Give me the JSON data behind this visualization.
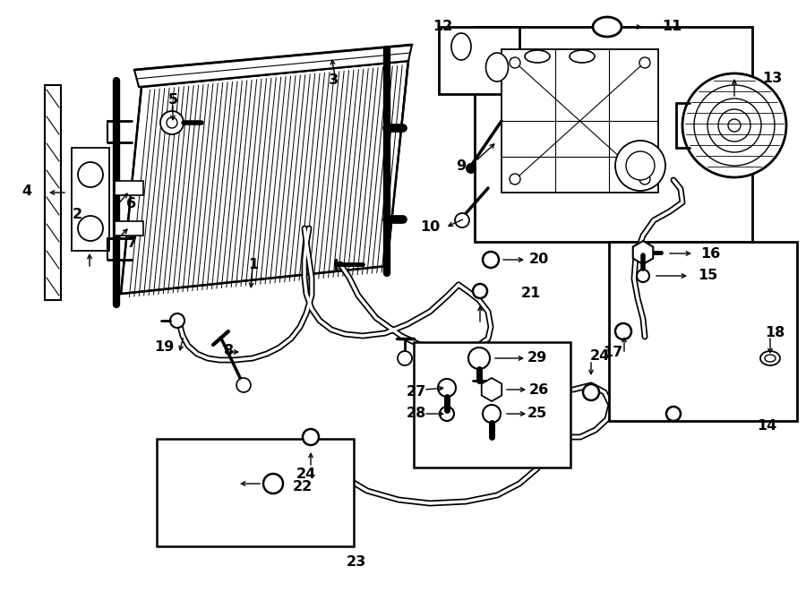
{
  "bg": "#ffffff",
  "lc": "#000000",
  "fig_w": 9.0,
  "fig_h": 6.61,
  "dpi": 100
}
